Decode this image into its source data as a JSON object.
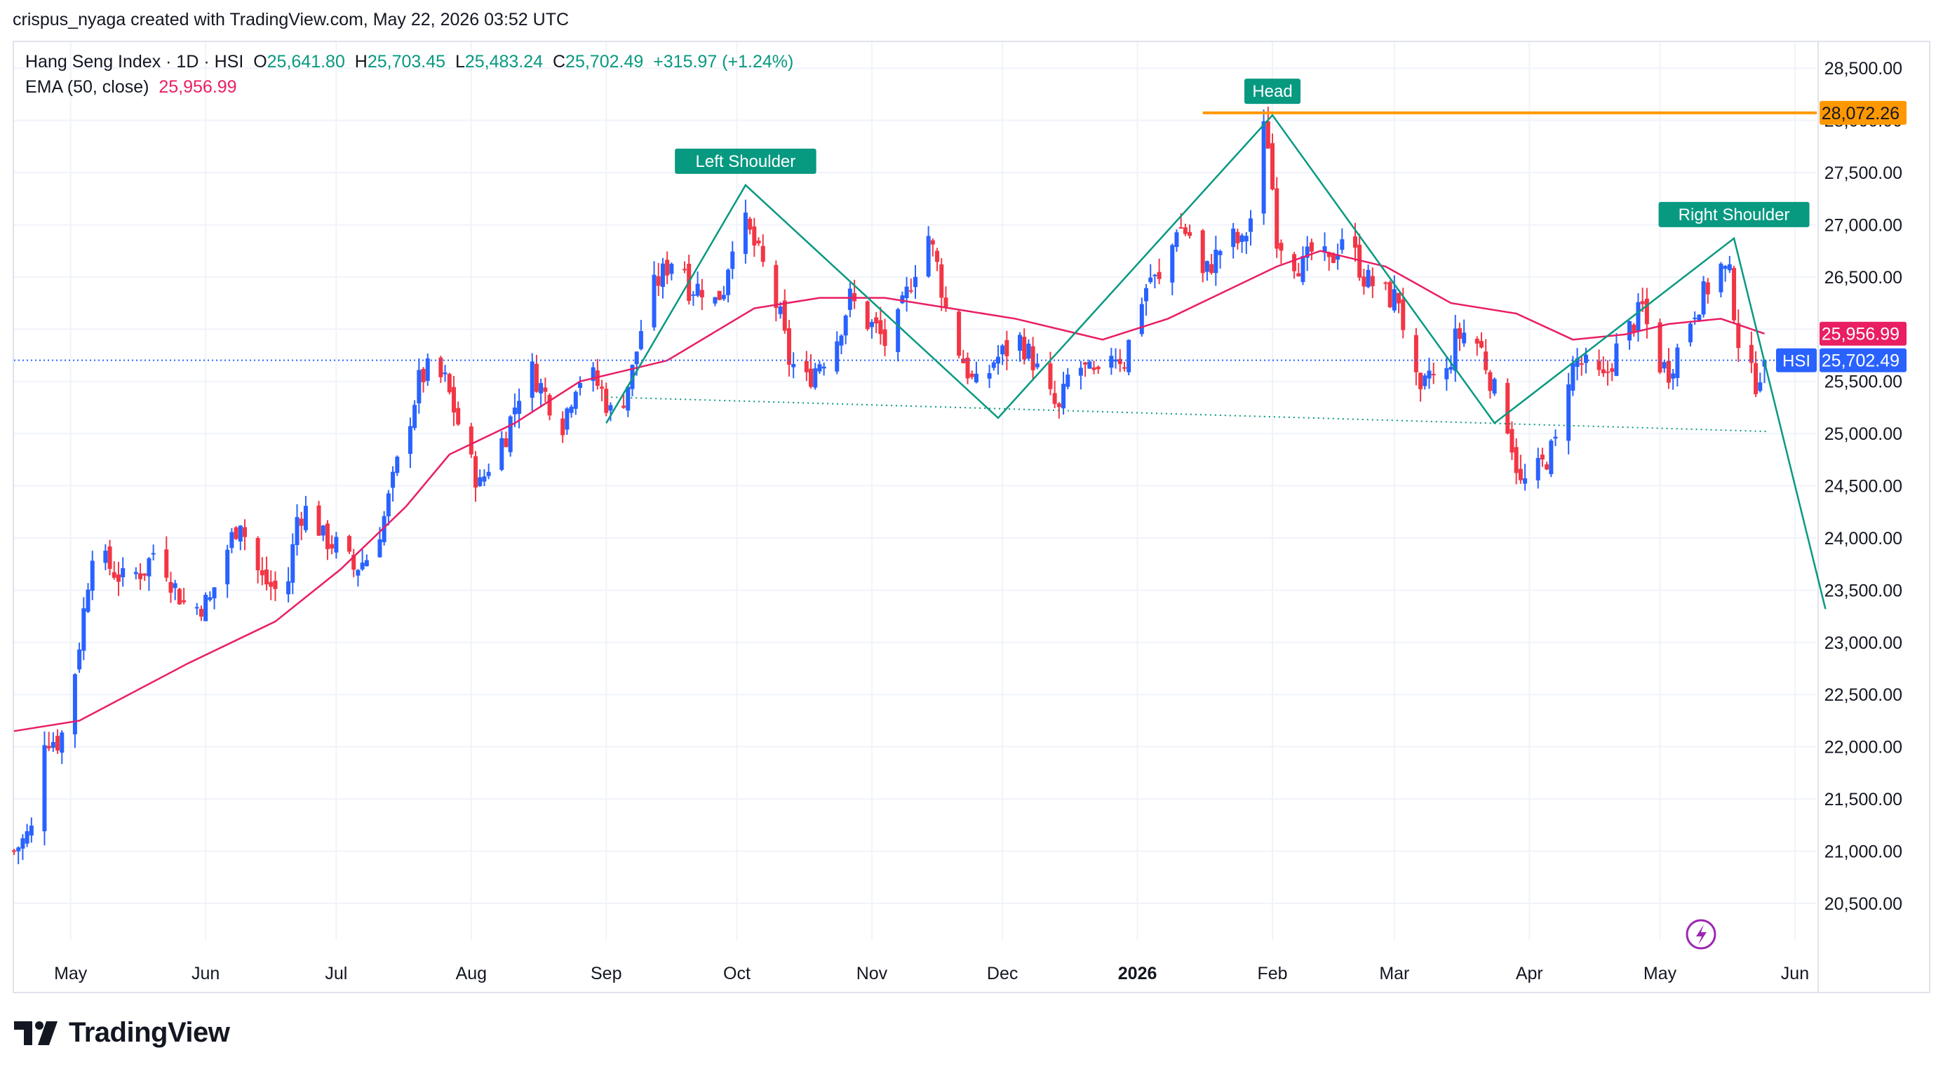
{
  "header": {
    "credit": "crispus_nyaga created with TradingView.com, May 22, 2026 03:52 UTC"
  },
  "legend": {
    "symbol": "Hang Seng Index · 1D · HSI",
    "o_label": "O",
    "o_value": "25,641.80",
    "h_label": "H",
    "h_value": "25,703.45",
    "l_label": "L",
    "l_value": "25,483.24",
    "c_label": "C",
    "c_value": "25,702.49",
    "change": "+315.97 (+1.24%)",
    "ema_label": "EMA (50, close)",
    "ema_value": "25,956.99"
  },
  "footer": {
    "brand": "TradingView"
  },
  "chart_data": {
    "type": "candlestick",
    "y_range": [
      20150,
      28750
    ],
    "x_range_days": [
      0,
      414
    ],
    "y_ticks": [
      "28,500.00",
      "28,000.00",
      "27,500.00",
      "27,000.00",
      "26,500.00",
      "26,000.00",
      "25,500.00",
      "25,000.00",
      "24,500.00",
      "24,000.00",
      "23,500.00",
      "23,000.00",
      "22,500.00",
      "22,000.00",
      "21,500.00",
      "21,000.00",
      "20,500.00"
    ],
    "y_tick_values": [
      28500,
      28000,
      27500,
      27000,
      26500,
      26000,
      25500,
      25000,
      24500,
      24000,
      23500,
      23000,
      22500,
      22000,
      21500,
      21000,
      20500
    ],
    "x_ticks": [
      {
        "label": "May",
        "day": 13,
        "bold": false
      },
      {
        "label": "Jun",
        "day": 44,
        "bold": false
      },
      {
        "label": "Jul",
        "day": 74,
        "bold": false
      },
      {
        "label": "Aug",
        "day": 105,
        "bold": false
      },
      {
        "label": "Sep",
        "day": 136,
        "bold": false
      },
      {
        "label": "Oct",
        "day": 166,
        "bold": false
      },
      {
        "label": "Nov",
        "day": 197,
        "bold": false
      },
      {
        "label": "Dec",
        "day": 227,
        "bold": false
      },
      {
        "label": "2026",
        "day": 258,
        "bold": true
      },
      {
        "label": "Feb",
        "day": 289,
        "bold": false
      },
      {
        "label": "Mar",
        "day": 317,
        "bold": false
      },
      {
        "label": "Apr",
        "day": 348,
        "bold": false
      },
      {
        "label": "May",
        "day": 378,
        "bold": false
      },
      {
        "label": "Jun",
        "day": 409,
        "bold": false
      }
    ],
    "anchors": [
      [
        0,
        21000
      ],
      [
        4,
        21200
      ],
      [
        7,
        22100
      ],
      [
        10,
        22050
      ],
      [
        12,
        22200
      ],
      [
        15,
        23000
      ],
      [
        18,
        23900
      ],
      [
        20,
        23800
      ],
      [
        25,
        23600
      ],
      [
        30,
        23700
      ],
      [
        33,
        23950
      ],
      [
        36,
        23600
      ],
      [
        40,
        23300
      ],
      [
        45,
        23400
      ],
      [
        48,
        23800
      ],
      [
        52,
        24200
      ],
      [
        54,
        23850
      ],
      [
        57,
        23600
      ],
      [
        60,
        23500
      ],
      [
        62,
        23300
      ],
      [
        65,
        24200
      ],
      [
        68,
        24300
      ],
      [
        71,
        24000
      ],
      [
        75,
        23900
      ],
      [
        78,
        23700
      ],
      [
        82,
        23850
      ],
      [
        85,
        24200
      ],
      [
        88,
        24700
      ],
      [
        90,
        25000
      ],
      [
        93,
        25500
      ],
      [
        95,
        25600
      ],
      [
        99,
        25500
      ],
      [
        102,
        25100
      ],
      [
        105,
        24700
      ],
      [
        107,
        24500
      ],
      [
        110,
        24800
      ],
      [
        113,
        25000
      ],
      [
        116,
        25400
      ],
      [
        119,
        25600
      ],
      [
        123,
        25300
      ],
      [
        126,
        25100
      ],
      [
        129,
        25500
      ],
      [
        132,
        25600
      ],
      [
        135,
        25400
      ],
      [
        138,
        25100
      ],
      [
        142,
        25600
      ],
      [
        144,
        26000
      ],
      [
        147,
        26400
      ],
      [
        150,
        26600
      ],
      [
        153,
        26800
      ],
      [
        155,
        26400
      ],
      [
        158,
        26400
      ],
      [
        160,
        26200
      ],
      [
        163,
        26400
      ],
      [
        166,
        27100
      ],
      [
        168,
        27000
      ],
      [
        170,
        26800
      ],
      [
        173,
        26500
      ],
      [
        176,
        26100
      ],
      [
        178,
        25700
      ],
      [
        182,
        25500
      ],
      [
        185,
        25700
      ],
      [
        188,
        25800
      ],
      [
        192,
        26300
      ],
      [
        195,
        26100
      ],
      [
        198,
        26000
      ],
      [
        201,
        25800
      ],
      [
        204,
        26200
      ],
      [
        207,
        26600
      ],
      [
        210,
        26900
      ],
      [
        212,
        26600
      ],
      [
        215,
        26000
      ],
      [
        218,
        25700
      ],
      [
        220,
        25500
      ],
      [
        222,
        25400
      ],
      [
        225,
        25700
      ],
      [
        228,
        25800
      ],
      [
        231,
        25900
      ],
      [
        234,
        25700
      ],
      [
        237,
        25400
      ],
      [
        240,
        25200
      ],
      [
        243,
        25700
      ],
      [
        246,
        25600
      ],
      [
        249,
        25500
      ],
      [
        252,
        25800
      ],
      [
        255,
        25700
      ],
      [
        258,
        26200
      ],
      [
        261,
        26500
      ],
      [
        264,
        26400
      ],
      [
        267,
        27000
      ],
      [
        270,
        26900
      ],
      [
        273,
        26500
      ],
      [
        276,
        26700
      ],
      [
        279,
        26900
      ],
      [
        282,
        26800
      ],
      [
        285,
        27200
      ],
      [
        287,
        27900
      ],
      [
        288,
        27800
      ],
      [
        290,
        26900
      ],
      [
        293,
        26700
      ],
      [
        296,
        26600
      ],
      [
        299,
        26800
      ],
      [
        302,
        26600
      ],
      [
        305,
        26900
      ],
      [
        307,
        26800
      ],
      [
        310,
        26500
      ],
      [
        313,
        26400
      ],
      [
        316,
        26300
      ],
      [
        318,
        26300
      ],
      [
        320,
        25800
      ],
      [
        323,
        25300
      ],
      [
        325,
        25600
      ],
      [
        328,
        25400
      ],
      [
        331,
        25900
      ],
      [
        334,
        26000
      ],
      [
        337,
        25800
      ],
      [
        340,
        25400
      ],
      [
        343,
        25100
      ],
      [
        346,
        24500
      ],
      [
        349,
        24600
      ],
      [
        351,
        24700
      ],
      [
        354,
        24900
      ],
      [
        356,
        25500
      ],
      [
        359,
        25700
      ],
      [
        362,
        25600
      ],
      [
        365,
        25500
      ],
      [
        368,
        25800
      ],
      [
        371,
        26000
      ],
      [
        374,
        26200
      ],
      [
        377,
        25700
      ],
      [
        380,
        25600
      ],
      [
        383,
        25900
      ],
      [
        386,
        26200
      ],
      [
        389,
        26400
      ],
      [
        392,
        26600
      ],
      [
        394,
        26500
      ],
      [
        396,
        25900
      ],
      [
        398,
        25600
      ],
      [
        400,
        25500
      ],
      [
        402,
        25702
      ]
    ],
    "ema": [
      [
        0,
        22150
      ],
      [
        15,
        22250
      ],
      [
        40,
        22800
      ],
      [
        60,
        23200
      ],
      [
        75,
        23700
      ],
      [
        90,
        24300
      ],
      [
        100,
        24800
      ],
      [
        115,
        25100
      ],
      [
        130,
        25500
      ],
      [
        150,
        25700
      ],
      [
        170,
        26200
      ],
      [
        185,
        26300
      ],
      [
        200,
        26300
      ],
      [
        215,
        26200
      ],
      [
        230,
        26100
      ],
      [
        250,
        25900
      ],
      [
        265,
        26100
      ],
      [
        280,
        26400
      ],
      [
        290,
        26600
      ],
      [
        300,
        26750
      ],
      [
        315,
        26600
      ],
      [
        330,
        26250
      ],
      [
        345,
        26150
      ],
      [
        358,
        25900
      ],
      [
        370,
        25950
      ],
      [
        380,
        26050
      ],
      [
        392,
        26100
      ],
      [
        402,
        25957
      ]
    ],
    "pattern": {
      "neckline_label": "",
      "zigzag": [
        [
          136,
          25100
        ],
        [
          168,
          27380
        ],
        [
          226,
          25150
        ],
        [
          289,
          28050
        ],
        [
          340,
          25100
        ],
        [
          395,
          26870
        ],
        [
          416,
          23320
        ]
      ],
      "neckline": [
        [
          136,
          25350
        ],
        [
          403,
          25020
        ]
      ],
      "labels": [
        {
          "text": "Left Shoulder",
          "day": 168,
          "price": 27380
        },
        {
          "text": "Head",
          "day": 289,
          "price": 28050
        },
        {
          "text": "Right Shoulder",
          "day": 395,
          "price": 26870
        }
      ],
      "resistance_level": 28072.26,
      "resistance_label": "28,072.26",
      "resistance_start_day": 273
    },
    "price_tags": [
      {
        "name": "ema-value-tag",
        "text": "25,956.99",
        "price": 25956.99,
        "color": "#e91e63"
      },
      {
        "name": "last-price-tag",
        "text": "25,702.49",
        "price": 25702.49,
        "color": "#2962ff",
        "symbol": "HSI"
      }
    ],
    "colors": {
      "up": "#2962ff",
      "down": "#f23645",
      "ema": "#e91e63",
      "pattern": "#089981",
      "resistance": "#ff9800",
      "grid": "#f0f3fa",
      "axis_text": "#131722"
    }
  }
}
